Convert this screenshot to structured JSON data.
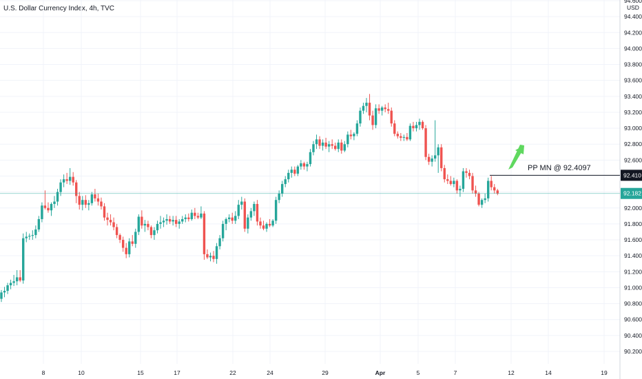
{
  "header": {
    "title": "U.S. Dollar Currency Index, 4h, TVC"
  },
  "colors": {
    "up": "#26a69a",
    "down": "#ef5350",
    "grid": "#f0f3fa",
    "axis_text": "#131722",
    "arrow": "#5fd85f",
    "last_price_line": "#26a69a",
    "level_line": "#131722",
    "level_tag_bg": "#131722",
    "last_tag_bg": "#26a69a"
  },
  "chart_data": {
    "type": "candlestick",
    "currency": "USD",
    "ylim": [
      90.0,
      94.6
    ],
    "y_ticks": [
      "94.600",
      "94.400",
      "94.200",
      "94.000",
      "93.800",
      "93.600",
      "93.400",
      "93.200",
      "93.000",
      "92.800",
      "92.600",
      "92.400",
      "92.200",
      "92.000",
      "91.800",
      "91.600",
      "91.400",
      "91.200",
      "91.000",
      "90.800",
      "90.600",
      "90.400",
      "90.200"
    ],
    "x_ticks": [
      "8",
      "10",
      "15",
      "17",
      "22",
      "24",
      "29",
      "Apr",
      "5",
      "7",
      "12",
      "14",
      "19"
    ],
    "grid": true,
    "annotation": {
      "text": "PP MN @ 92.4097",
      "value": 92.4097
    },
    "level_tag": "92.410",
    "last_price": 92.182,
    "last_price_tag": "92.182",
    "candles": [
      [
        90.86,
        90.97,
        90.82,
        90.94
      ],
      [
        90.94,
        91.01,
        90.88,
        90.96
      ],
      [
        90.96,
        91.06,
        90.92,
        91.03
      ],
      [
        91.03,
        91.1,
        90.98,
        91.06
      ],
      [
        91.06,
        91.16,
        91.02,
        91.08
      ],
      [
        91.08,
        91.22,
        91.03,
        91.13
      ],
      [
        91.13,
        91.22,
        91.07,
        91.09
      ],
      [
        91.09,
        91.68,
        91.05,
        91.62
      ],
      [
        91.62,
        91.7,
        91.57,
        91.64
      ],
      [
        91.64,
        91.68,
        91.6,
        91.65
      ],
      [
        91.65,
        91.72,
        91.6,
        91.66
      ],
      [
        91.66,
        91.78,
        91.62,
        91.73
      ],
      [
        91.73,
        91.9,
        91.7,
        91.86
      ],
      [
        91.86,
        92.07,
        91.82,
        92.03
      ],
      [
        92.03,
        92.22,
        91.98,
        92.0
      ],
      [
        92.0,
        92.07,
        91.94,
        91.97
      ],
      [
        91.97,
        92.07,
        91.9,
        92.05
      ],
      [
        92.05,
        92.15,
        92.0,
        92.08
      ],
      [
        92.08,
        92.24,
        92.03,
        92.2
      ],
      [
        92.2,
        92.36,
        92.15,
        92.32
      ],
      [
        92.32,
        92.42,
        92.26,
        92.36
      ],
      [
        92.36,
        92.44,
        92.3,
        92.34
      ],
      [
        92.34,
        92.5,
        92.29,
        92.39
      ],
      [
        92.39,
        92.45,
        92.28,
        92.32
      ],
      [
        92.32,
        92.35,
        92.06,
        92.15
      ],
      [
        92.15,
        92.2,
        91.98,
        92.04
      ],
      [
        92.04,
        92.15,
        91.97,
        92.1
      ],
      [
        92.1,
        92.16,
        92.0,
        92.04
      ],
      [
        92.04,
        92.1,
        91.97,
        92.06
      ],
      [
        92.06,
        92.2,
        92.03,
        92.17
      ],
      [
        92.17,
        92.24,
        92.08,
        92.12
      ],
      [
        92.12,
        92.18,
        92.03,
        92.08
      ],
      [
        92.08,
        92.13,
        91.98,
        92.02
      ],
      [
        92.02,
        92.06,
        91.84,
        91.88
      ],
      [
        91.88,
        91.94,
        91.78,
        91.85
      ],
      [
        91.85,
        91.92,
        91.78,
        91.82
      ],
      [
        91.82,
        91.88,
        91.72,
        91.76
      ],
      [
        91.76,
        91.8,
        91.62,
        91.66
      ],
      [
        91.66,
        91.68,
        91.56,
        91.6
      ],
      [
        91.6,
        91.64,
        91.45,
        91.5
      ],
      [
        91.5,
        91.56,
        91.37,
        91.42
      ],
      [
        91.42,
        91.62,
        91.38,
        91.58
      ],
      [
        91.58,
        91.66,
        91.52,
        91.55
      ],
      [
        91.55,
        91.74,
        91.5,
        91.7
      ],
      [
        91.7,
        91.92,
        91.66,
        91.89
      ],
      [
        91.89,
        91.97,
        91.74,
        91.78
      ],
      [
        91.78,
        91.85,
        91.7,
        91.8
      ],
      [
        91.8,
        91.84,
        91.72,
        91.76
      ],
      [
        91.76,
        91.78,
        91.62,
        91.66
      ],
      [
        91.66,
        91.76,
        91.6,
        91.72
      ],
      [
        91.72,
        91.84,
        91.68,
        91.8
      ],
      [
        91.8,
        91.9,
        91.74,
        91.82
      ],
      [
        91.82,
        91.88,
        91.76,
        91.84
      ],
      [
        91.84,
        91.92,
        91.79,
        91.86
      ],
      [
        91.86,
        91.9,
        91.8,
        91.83
      ],
      [
        91.83,
        91.9,
        91.78,
        91.85
      ],
      [
        91.85,
        91.9,
        91.76,
        91.8
      ],
      [
        91.8,
        91.86,
        91.74,
        91.83
      ],
      [
        91.83,
        91.9,
        91.8,
        91.86
      ],
      [
        91.86,
        91.92,
        91.82,
        91.88
      ],
      [
        91.88,
        91.93,
        91.83,
        91.86
      ],
      [
        91.86,
        91.98,
        91.84,
        91.94
      ],
      [
        91.94,
        92.0,
        91.86,
        91.9
      ],
      [
        91.9,
        91.94,
        91.86,
        91.88
      ],
      [
        91.88,
        92.02,
        91.86,
        91.93
      ],
      [
        91.93,
        91.96,
        91.35,
        91.42
      ],
      [
        91.42,
        91.48,
        91.36,
        91.38
      ],
      [
        91.38,
        91.44,
        91.33,
        91.4
      ],
      [
        91.4,
        91.46,
        91.32,
        91.36
      ],
      [
        91.36,
        91.56,
        91.3,
        91.52
      ],
      [
        91.52,
        91.66,
        91.48,
        91.62
      ],
      [
        91.62,
        91.84,
        91.58,
        91.8
      ],
      [
        91.8,
        91.88,
        91.72,
        91.86
      ],
      [
        91.86,
        91.92,
        91.82,
        91.88
      ],
      [
        91.88,
        91.94,
        91.8,
        91.84
      ],
      [
        91.84,
        91.96,
        91.8,
        91.9
      ],
      [
        91.9,
        92.1,
        91.86,
        92.04
      ],
      [
        92.04,
        92.14,
        91.98,
        92.08
      ],
      [
        92.08,
        92.12,
        91.7,
        91.74
      ],
      [
        91.74,
        91.92,
        91.68,
        91.88
      ],
      [
        91.88,
        92.0,
        91.84,
        91.96
      ],
      [
        91.96,
        92.08,
        91.9,
        92.05
      ],
      [
        92.05,
        92.1,
        91.78,
        91.83
      ],
      [
        91.83,
        91.88,
        91.74,
        91.78
      ],
      [
        91.78,
        91.84,
        91.72,
        91.74
      ],
      [
        91.74,
        91.82,
        91.7,
        91.8
      ],
      [
        91.8,
        91.86,
        91.76,
        91.78
      ],
      [
        91.78,
        91.86,
        91.76,
        91.84
      ],
      [
        91.84,
        92.14,
        91.8,
        92.1
      ],
      [
        92.1,
        92.22,
        92.06,
        92.18
      ],
      [
        92.18,
        92.34,
        92.14,
        92.3
      ],
      [
        92.3,
        92.4,
        92.26,
        92.36
      ],
      [
        92.36,
        92.48,
        92.32,
        92.44
      ],
      [
        92.44,
        92.52,
        92.38,
        92.48
      ],
      [
        92.48,
        92.52,
        92.4,
        92.43
      ],
      [
        92.43,
        92.54,
        92.4,
        92.52
      ],
      [
        92.52,
        92.6,
        92.48,
        92.56
      ],
      [
        92.56,
        92.58,
        92.48,
        92.52
      ],
      [
        92.52,
        92.58,
        92.46,
        92.55
      ],
      [
        92.55,
        92.74,
        92.52,
        92.7
      ],
      [
        92.7,
        92.84,
        92.66,
        92.8
      ],
      [
        92.8,
        92.92,
        92.74,
        92.86
      ],
      [
        92.86,
        92.9,
        92.74,
        92.78
      ],
      [
        92.78,
        92.86,
        92.72,
        92.82
      ],
      [
        92.82,
        92.88,
        92.74,
        92.77
      ],
      [
        92.77,
        92.84,
        92.7,
        92.8
      ],
      [
        92.8,
        92.86,
        92.74,
        92.78
      ],
      [
        92.78,
        92.82,
        92.72,
        92.74
      ],
      [
        92.74,
        92.86,
        92.7,
        92.82
      ],
      [
        92.82,
        92.86,
        92.68,
        92.72
      ],
      [
        92.72,
        92.84,
        92.7,
        92.8
      ],
      [
        92.8,
        92.96,
        92.76,
        92.92
      ],
      [
        92.92,
        92.98,
        92.86,
        92.9
      ],
      [
        92.9,
        92.95,
        92.85,
        92.93
      ],
      [
        92.93,
        93.1,
        92.9,
        93.06
      ],
      [
        93.06,
        93.26,
        93.02,
        93.22
      ],
      [
        93.22,
        93.32,
        93.18,
        93.28
      ],
      [
        93.28,
        93.38,
        93.2,
        93.32
      ],
      [
        93.32,
        93.43,
        93.1,
        93.16
      ],
      [
        93.16,
        93.22,
        92.98,
        93.04
      ],
      [
        93.04,
        93.3,
        93.0,
        93.25
      ],
      [
        93.25,
        93.3,
        93.18,
        93.22
      ],
      [
        93.22,
        93.28,
        93.16,
        93.26
      ],
      [
        93.26,
        93.3,
        93.2,
        93.24
      ],
      [
        93.24,
        93.32,
        93.18,
        93.22
      ],
      [
        93.22,
        93.26,
        93.02,
        93.06
      ],
      [
        93.06,
        93.1,
        92.9,
        92.93
      ],
      [
        92.93,
        92.96,
        92.87,
        92.9
      ],
      [
        92.9,
        92.94,
        92.84,
        92.88
      ],
      [
        92.88,
        92.92,
        92.84,
        92.89
      ],
      [
        92.89,
        92.94,
        92.84,
        92.86
      ],
      [
        92.86,
        93.06,
        92.84,
        93.03
      ],
      [
        93.03,
        93.08,
        92.96,
        93.0
      ],
      [
        93.0,
        93.08,
        92.96,
        93.04
      ],
      [
        93.04,
        93.12,
        92.98,
        93.08
      ],
      [
        93.08,
        93.1,
        92.98,
        93.0
      ],
      [
        93.0,
        93.04,
        92.6,
        92.64
      ],
      [
        92.64,
        92.68,
        92.54,
        92.58
      ],
      [
        92.58,
        92.66,
        92.52,
        92.62
      ],
      [
        92.62,
        93.1,
        92.58,
        92.66
      ],
      [
        92.66,
        92.8,
        92.44,
        92.76
      ],
      [
        92.76,
        92.8,
        92.46,
        92.5
      ],
      [
        92.5,
        92.54,
        92.32,
        92.36
      ],
      [
        92.36,
        92.42,
        92.3,
        92.34
      ],
      [
        92.34,
        92.4,
        92.28,
        92.3
      ],
      [
        92.3,
        92.38,
        92.26,
        92.34
      ],
      [
        92.34,
        92.36,
        92.18,
        92.22
      ],
      [
        92.22,
        92.28,
        92.14,
        92.24
      ],
      [
        92.24,
        92.5,
        92.2,
        92.46
      ],
      [
        92.46,
        92.5,
        92.38,
        92.44
      ],
      [
        92.44,
        92.48,
        92.36,
        92.4
      ],
      [
        92.4,
        92.44,
        92.18,
        92.22
      ],
      [
        92.22,
        92.28,
        92.14,
        92.18
      ],
      [
        92.18,
        92.2,
        92.02,
        92.04
      ],
      [
        92.04,
        92.12,
        92.0,
        92.1
      ],
      [
        92.1,
        92.18,
        92.06,
        92.12
      ],
      [
        92.12,
        92.38,
        92.08,
        92.34
      ],
      [
        92.34,
        92.4,
        92.22,
        92.26
      ],
      [
        92.26,
        92.3,
        92.18,
        92.22
      ],
      [
        92.22,
        92.24,
        92.16,
        92.18
      ]
    ]
  }
}
